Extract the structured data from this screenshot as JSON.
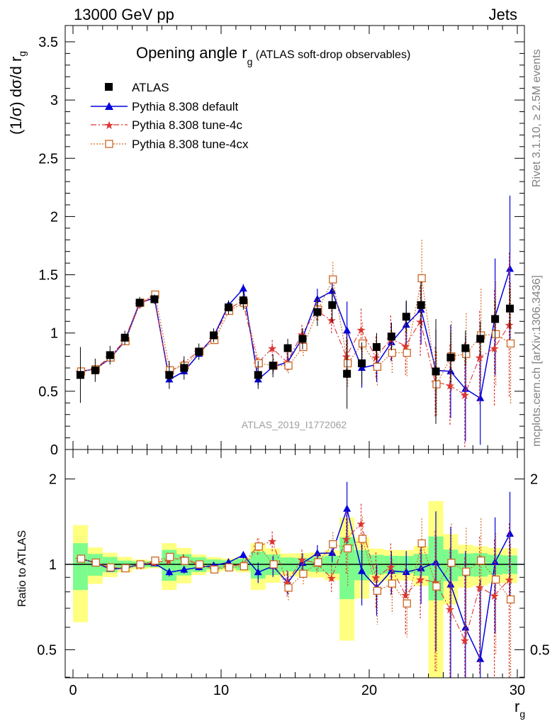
{
  "header": {
    "left": "13000 GeV pp",
    "right": "Jets"
  },
  "title": {
    "main": "Opening angle r",
    "main_sub": "g",
    "suffix": " (ATLAS soft-drop observables)"
  },
  "side_labels": {
    "rivet": "Rivet 3.1.10, ≥ 2.5M events",
    "mcplots": "mcplots.cern.ch [arXiv:1306.3436]"
  },
  "analysis_id": "ATLAS_2019_I1772062",
  "axes": {
    "ylabel_main": "(1/σ) dσ/d r",
    "ylabel_main_sub": "g",
    "ylabel_ratio": "Ratio to ATLAS",
    "xlabel": "r",
    "xlabel_sub": "g",
    "main_yticks": [
      "0",
      "0.5",
      "1",
      "1.5",
      "2",
      "2.5",
      "3",
      "3.5"
    ],
    "ratio_yticks": [
      "0.5",
      "1",
      "2"
    ],
    "xticks": [
      "0",
      "10",
      "20",
      "30"
    ]
  },
  "legend": [
    {
      "label": "ATLAS"
    },
    {
      "label": "Pythia 8.308 default"
    },
    {
      "label": "Pythia 8.308 tune-4c"
    },
    {
      "label": "Pythia 8.308 tune-4cx"
    }
  ],
  "colors": {
    "data": "#000000",
    "default": "#0000dd",
    "tune4c": "#dd3333",
    "tune4cx": "#cc6622",
    "band_inner": "#7cfc8c",
    "band_outer": "#ffff80"
  },
  "chart_data": {
    "type": "scatter",
    "xlim": [
      0,
      30
    ],
    "main_ylim": [
      0,
      3.65
    ],
    "ratio_ylim": [
      0.35,
      2.3
    ],
    "ratio_log": true,
    "x": [
      0.5,
      1.5,
      2.5,
      3.5,
      4.5,
      5.5,
      6.5,
      7.5,
      8.5,
      9.5,
      10.5,
      11.5,
      12.5,
      13.5,
      14.5,
      15.5,
      16.5,
      17.5,
      18.5,
      19.5,
      20.5,
      21.5,
      22.5,
      23.5,
      24.5,
      25.5,
      26.5,
      27.5,
      28.5,
      29.5
    ],
    "data": {
      "values": [
        0.64,
        0.68,
        0.81,
        0.96,
        1.26,
        1.29,
        0.64,
        0.7,
        0.84,
        0.98,
        1.22,
        1.28,
        0.64,
        0.72,
        0.87,
        0.95,
        1.18,
        1.24,
        0.65,
        0.74,
        0.88,
        0.97,
        1.14,
        1.24,
        0.67,
        0.79,
        0.87,
        0.95,
        1.12,
        1.21
      ],
      "err_inner": [
        0.12,
        0.06,
        0.05,
        0.03,
        0.03,
        0.03,
        0.08,
        0.06,
        0.05,
        0.04,
        0.04,
        0.06,
        0.07,
        0.06,
        0.05,
        0.05,
        0.07,
        0.09,
        0.16,
        0.09,
        0.07,
        0.07,
        0.08,
        0.11,
        0.17,
        0.1,
        0.08,
        0.09,
        0.09,
        0.09
      ],
      "err_outer": [
        0.24,
        0.1,
        0.08,
        0.06,
        0.05,
        0.04,
        0.12,
        0.1,
        0.07,
        0.06,
        0.06,
        0.08,
        0.12,
        0.1,
        0.08,
        0.09,
        0.12,
        0.15,
        0.3,
        0.18,
        0.12,
        0.12,
        0.14,
        0.2,
        0.45,
        0.22,
        0.15,
        0.15,
        0.16,
        0.17
      ]
    },
    "series": [
      {
        "name": "Pythia 8.308 default",
        "key": "default",
        "values": [
          0.67,
          0.69,
          0.78,
          0.93,
          1.26,
          1.3,
          0.6,
          0.67,
          0.82,
          0.97,
          1.24,
          1.38,
          0.6,
          0.71,
          0.75,
          0.96,
          1.29,
          1.36,
          1.02,
          0.7,
          0.73,
          0.92,
          1.07,
          1.2,
          0.68,
          0.67,
          0.52,
          0.44,
          1.14,
          1.55
        ],
        "errs": [
          0.01,
          0.01,
          0.01,
          0.01,
          0.01,
          0.01,
          0.02,
          0.02,
          0.02,
          0.02,
          0.03,
          0.04,
          0.05,
          0.06,
          0.07,
          0.08,
          0.09,
          0.1,
          0.25,
          0.17,
          0.15,
          0.16,
          0.2,
          0.3,
          0.35,
          0.4,
          0.45,
          0.4,
          0.5,
          0.63
        ]
      },
      {
        "name": "Pythia 8.308 tune-4c",
        "key": "tune4c",
        "values": [
          0.67,
          0.69,
          0.79,
          0.93,
          1.25,
          1.31,
          0.66,
          0.74,
          0.84,
          0.95,
          1.2,
          1.28,
          0.74,
          0.87,
          0.75,
          0.99,
          1.19,
          1.11,
          0.8,
          1.03,
          0.79,
          0.95,
          0.89,
          1.1,
          0.58,
          0.55,
          0.47,
          0.79,
          0.87,
          1.07
        ],
        "errs": [
          0.01,
          0.01,
          0.01,
          0.01,
          0.01,
          0.01,
          0.02,
          0.02,
          0.02,
          0.02,
          0.03,
          0.04,
          0.05,
          0.07,
          0.08,
          0.08,
          0.09,
          0.12,
          0.2,
          0.18,
          0.18,
          0.2,
          0.25,
          0.3,
          0.3,
          0.35,
          0.45,
          0.4,
          0.5,
          0.62
        ]
      },
      {
        "name": "Pythia 8.308 tune-4cx",
        "key": "tune4cx",
        "values": [
          0.67,
          0.69,
          0.79,
          0.93,
          1.26,
          1.33,
          0.68,
          0.72,
          0.84,
          0.94,
          1.19,
          1.26,
          0.74,
          0.72,
          0.72,
          0.88,
          1.2,
          1.46,
          0.74,
          0.91,
          0.71,
          0.83,
          0.83,
          1.47,
          0.56,
          0.8,
          0.82,
          0.98,
          0.99,
          0.91
        ],
        "errs": [
          0.01,
          0.01,
          0.01,
          0.01,
          0.01,
          0.01,
          0.02,
          0.02,
          0.02,
          0.02,
          0.03,
          0.04,
          0.05,
          0.06,
          0.07,
          0.08,
          0.09,
          0.15,
          0.2,
          0.18,
          0.17,
          0.18,
          0.2,
          0.33,
          0.28,
          0.3,
          0.35,
          0.4,
          0.45,
          0.52
        ]
      }
    ]
  }
}
